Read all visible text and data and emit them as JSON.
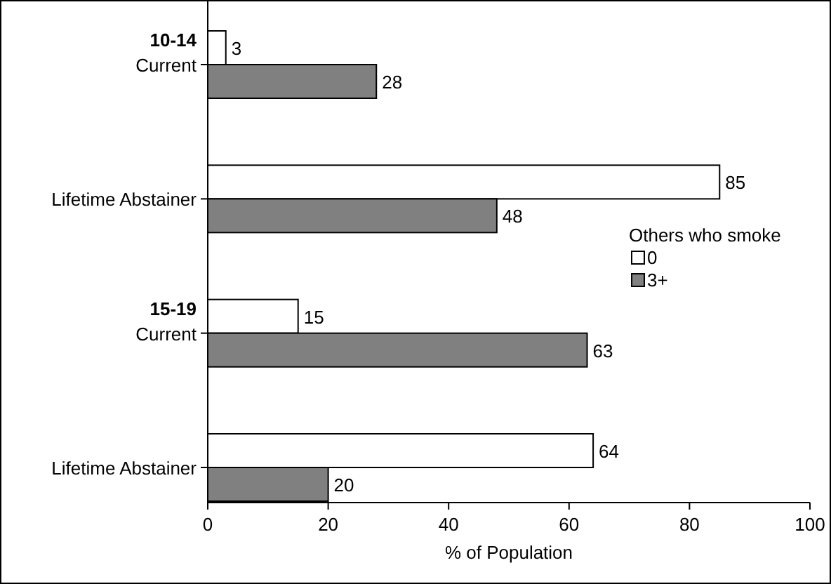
{
  "chart_data": {
    "type": "bar",
    "orientation": "horizontal",
    "categories": [
      "Current",
      "Lifetime Abstainer",
      "Current",
      "Lifetime Abstainer"
    ],
    "series": [
      {
        "name": "0",
        "color": "#ffffff",
        "values": [
          3,
          85,
          15,
          64
        ]
      },
      {
        "name": "3+",
        "color": "#808080",
        "values": [
          28,
          48,
          63,
          20
        ]
      }
    ],
    "annotations": [
      "10-14",
      "15-19"
    ],
    "xlim": [
      0,
      100
    ],
    "xticks": [
      0,
      20,
      40,
      60,
      80,
      100
    ],
    "xlabel": "% of Population",
    "legend_title": "Others who smoke",
    "legend": "right",
    "data_labels": true,
    "grid": false
  }
}
